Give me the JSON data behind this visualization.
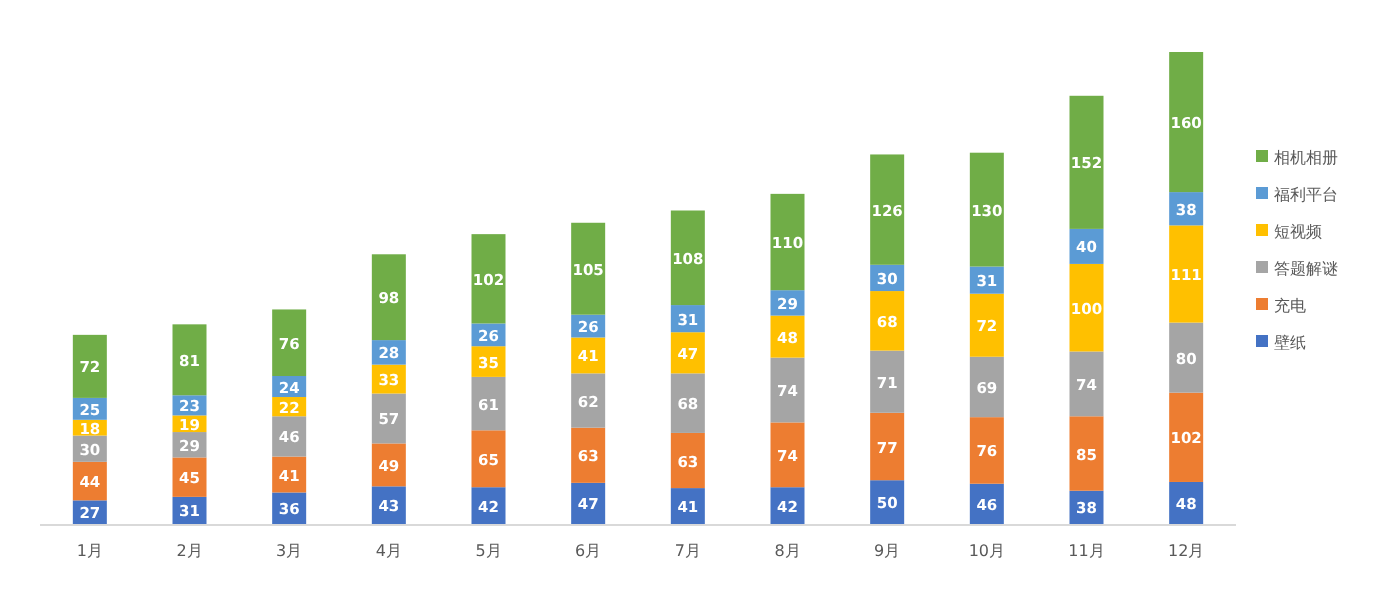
{
  "chart_data": {
    "type": "bar",
    "stacked": true,
    "data_labels": true,
    "legend": "right",
    "categories": [
      "1月",
      "2月",
      "3月",
      "4月",
      "5月",
      "6月",
      "7月",
      "8月",
      "9月",
      "10月",
      "11月",
      "12月"
    ],
    "series": [
      {
        "name": "壁纸",
        "color": "#4472c4",
        "values": [
          27,
          31,
          36,
          43,
          42,
          47,
          41,
          42,
          50,
          46,
          38,
          48
        ]
      },
      {
        "name": "充电",
        "color": "#ed7d31",
        "values": [
          44,
          45,
          41,
          49,
          65,
          63,
          63,
          74,
          77,
          76,
          85,
          102
        ]
      },
      {
        "name": "答题解谜",
        "color": "#a5a5a5",
        "values": [
          30,
          29,
          46,
          57,
          61,
          62,
          68,
          74,
          71,
          69,
          74,
          80
        ]
      },
      {
        "name": "短视频",
        "color": "#ffc000",
        "values": [
          18,
          19,
          22,
          33,
          35,
          41,
          47,
          48,
          68,
          72,
          100,
          111
        ]
      },
      {
        "name": "福利平台",
        "color": "#5b9bd5",
        "values": [
          25,
          23,
          24,
          28,
          26,
          26,
          31,
          29,
          30,
          31,
          40,
          38
        ]
      },
      {
        "name": "相机相册",
        "color": "#70ad47",
        "values": [
          72,
          81,
          76,
          98,
          102,
          105,
          108,
          110,
          126,
          130,
          152,
          160
        ]
      }
    ]
  }
}
